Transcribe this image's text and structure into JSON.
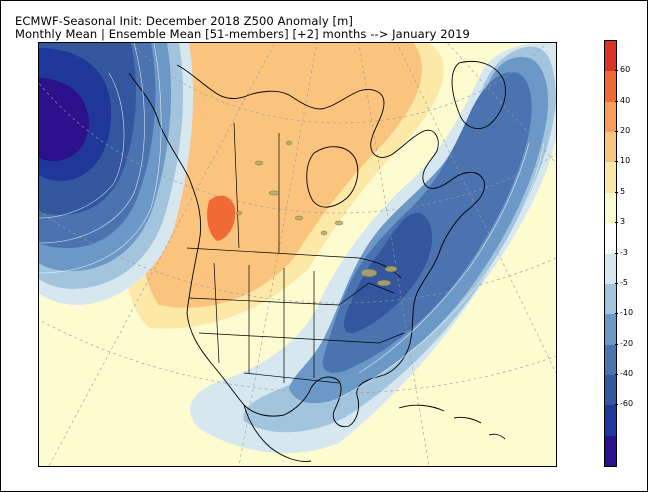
{
  "header": {
    "title_line1": "ECMWF-Seasonal Init: December 2018 Z500 Anomaly [m]",
    "title_line2": "Monthly Mean | Ensemble Mean [51-members] [+2] months --> January 2019"
  },
  "colorbar": {
    "colors": [
      "#2b108c",
      "#1f3799",
      "#34569f",
      "#4a73b0",
      "#6b98c6",
      "#a2c4dc",
      "#d6e7f0",
      "#ffffff",
      "#fdfbd0",
      "#fce9a8",
      "#fbc47e",
      "#f79d57",
      "#ef6a34",
      "#d83423"
    ],
    "labels": [
      "60",
      "40",
      "20",
      "10",
      "5",
      "3",
      "-3",
      "-5",
      "-10",
      "-20",
      "-40",
      "-60"
    ]
  },
  "map": {
    "projection": "north-polar",
    "anomaly_centers": [
      {
        "region": "north-pacific",
        "sign": "negative",
        "level": "-60"
      },
      {
        "region": "eastern-north-america",
        "sign": "negative",
        "level": "-20"
      },
      {
        "region": "western-canada",
        "sign": "positive",
        "level": "40"
      },
      {
        "region": "north-atlantic",
        "sign": "negative",
        "level": "-20"
      }
    ]
  }
}
